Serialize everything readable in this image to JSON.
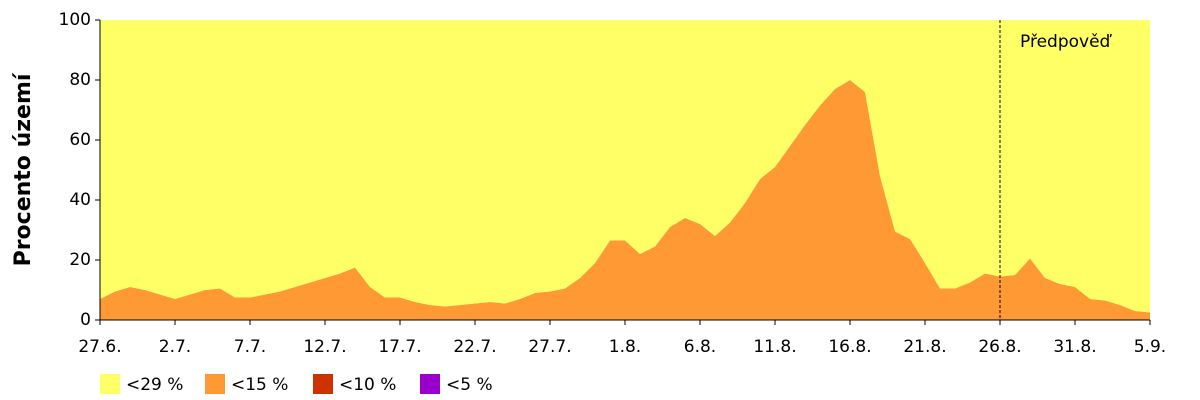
{
  "chart_data": {
    "type": "stacked_area",
    "ylabel": "Procento území",
    "categories": [
      "27.6.",
      null,
      null,
      null,
      null,
      "2.7.",
      null,
      null,
      null,
      null,
      "7.7.",
      null,
      null,
      null,
      null,
      "12.7.",
      null,
      null,
      null,
      null,
      "17.7.",
      null,
      null,
      null,
      null,
      "22.7.",
      null,
      null,
      null,
      null,
      "27.7.",
      null,
      null,
      null,
      null,
      "1.8.",
      null,
      null,
      null,
      null,
      "6.8.",
      null,
      null,
      null,
      null,
      "11.8.",
      null,
      null,
      null,
      null,
      "16.8.",
      null,
      null,
      null,
      null,
      "21.8.",
      null,
      null,
      null,
      null,
      "26.8.",
      null,
      null,
      null,
      null,
      "31.8.",
      null,
      null,
      null,
      null,
      "5.9."
    ],
    "series": [
      {
        "name": "<29 %",
        "color": "#ffff66",
        "values": [
          93,
          90.5,
          89,
          90,
          91.5,
          93,
          91.5,
          90,
          89.5,
          92.5,
          92.5,
          91.5,
          90.5,
          89,
          87.5,
          86,
          84.5,
          82.5,
          89,
          92.5,
          92.5,
          94,
          95,
          95.5,
          95,
          94.5,
          94,
          94.5,
          93,
          91,
          90.5,
          89.5,
          86,
          81,
          73.5,
          73.5,
          78,
          75.5,
          69,
          66,
          68,
          72,
          67.5,
          61,
          53,
          49,
          42,
          35,
          28.5,
          23,
          20,
          24,
          52,
          70.5,
          73,
          81,
          89.5,
          89.5,
          87.5,
          84.5,
          85.5,
          85,
          79.5,
          86,
          88,
          89,
          93,
          93.5,
          95,
          97,
          97.5
        ]
      },
      {
        "name": "<15 %",
        "color": "#ff9933",
        "values": [
          7,
          9.5,
          11,
          10,
          8.5,
          7,
          8.5,
          10,
          10.5,
          7.5,
          7.5,
          8.5,
          9.5,
          11,
          12.5,
          14,
          15.5,
          17.5,
          11,
          7.5,
          7.5,
          6,
          5,
          4.5,
          5,
          5.5,
          6,
          5.5,
          7,
          9,
          9.5,
          10.5,
          14,
          19,
          26.5,
          26.5,
          22,
          24.5,
          31,
          34,
          32,
          28,
          32.5,
          39,
          47,
          51,
          58,
          65,
          71.5,
          77,
          80,
          76,
          48,
          29.5,
          27,
          19,
          10.5,
          10.5,
          12.5,
          15.5,
          14.5,
          15,
          20.5,
          14,
          12,
          11,
          7,
          6.5,
          5,
          3,
          2.5
        ]
      },
      {
        "name": "<10 %",
        "color": "#cc3300",
        "values": [
          0,
          0,
          0,
          0,
          0,
          0,
          0,
          0,
          0,
          0,
          0,
          0,
          0,
          0,
          0,
          0,
          0,
          0,
          0,
          0,
          0,
          0,
          0,
          0,
          0,
          0,
          0,
          0,
          0,
          0,
          0,
          0,
          0,
          0,
          0,
          0,
          0,
          0,
          0,
          0,
          0,
          0,
          0,
          0,
          0,
          0,
          0,
          0,
          0,
          0,
          0,
          0,
          0,
          0,
          0,
          0,
          0,
          0,
          0,
          0,
          0,
          0,
          0,
          0,
          0,
          0,
          0,
          0,
          0,
          0,
          0
        ]
      },
      {
        "name": "<5 %",
        "color": "#9900cc",
        "values": [
          0,
          0,
          0,
          0,
          0,
          0,
          0,
          0,
          0,
          0,
          0,
          0,
          0,
          0,
          0,
          0,
          0,
          0,
          0,
          0,
          0,
          0,
          0,
          0,
          0,
          0,
          0,
          0,
          0,
          0,
          0,
          0,
          0,
          0,
          0,
          0,
          0,
          0,
          0,
          0,
          0,
          0,
          0,
          0,
          0,
          0,
          0,
          0,
          0,
          0,
          0,
          0,
          0,
          0,
          0,
          0,
          0,
          0,
          0,
          0,
          0,
          0,
          0,
          0,
          0,
          0,
          0,
          0,
          0,
          0,
          0
        ]
      }
    ],
    "ylim": [
      0,
      100
    ],
    "yticks": [
      0,
      20,
      40,
      60,
      80,
      100
    ],
    "annotation": {
      "text": "Předpověď",
      "x": "26.8."
    }
  }
}
